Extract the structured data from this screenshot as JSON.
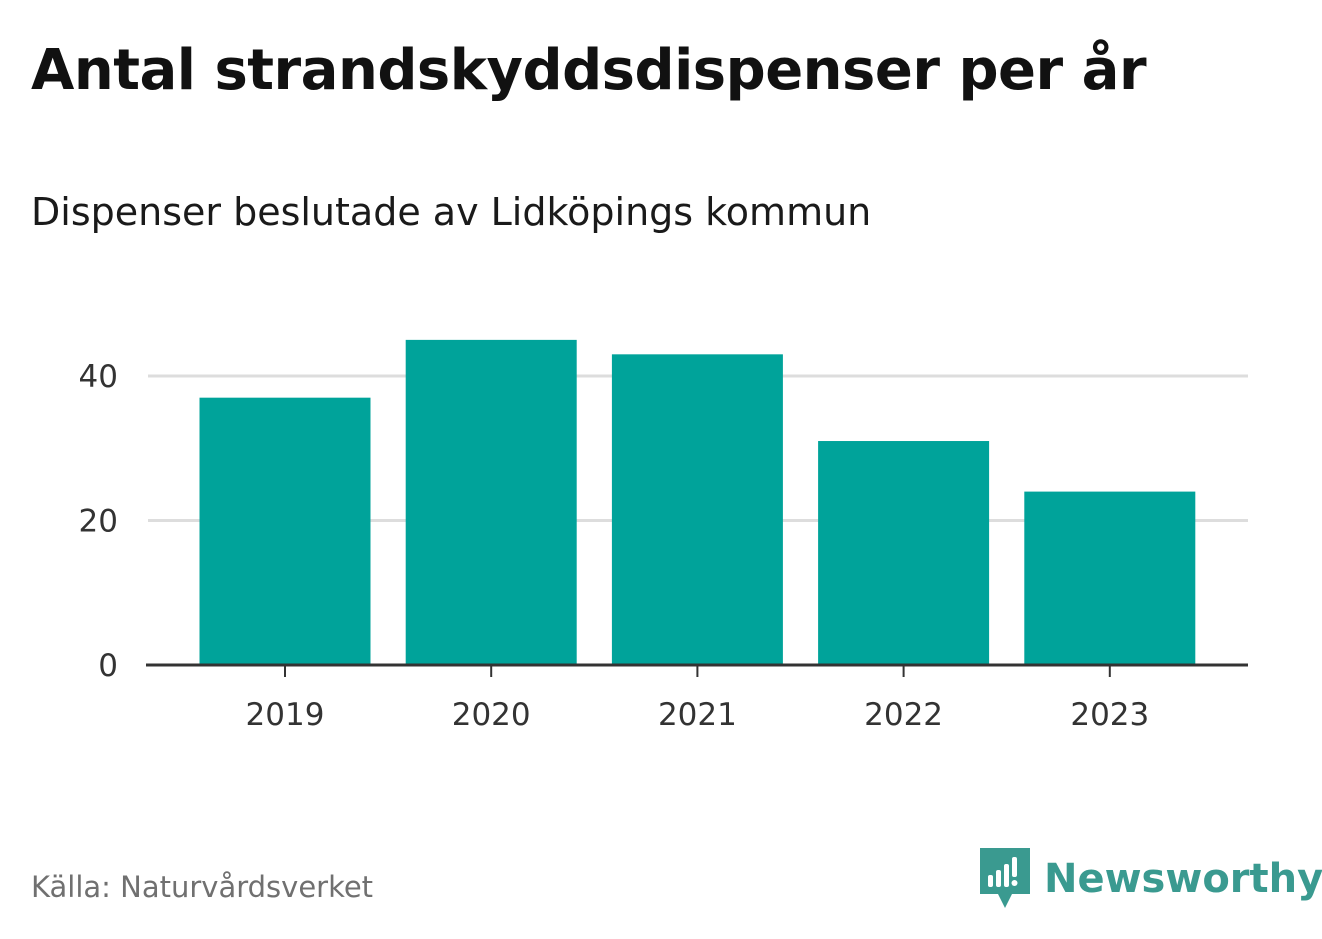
{
  "title": "Antal strandskyddsdispenser per år",
  "subtitle": "Dispenser beslutade av Lidköpings kommun",
  "source": "Källa: Naturvårdsverket",
  "brand": {
    "name": "Newsworthy",
    "icon": "newsworthy-logo-icon"
  },
  "colors": {
    "bar": "#00a39a",
    "grid": "#dddddd",
    "axis": "#333333",
    "brand": "#3a9a90"
  },
  "chart_data": {
    "type": "bar",
    "title": "Antal strandskyddsdispenser per år",
    "subtitle": "Dispenser beslutade av Lidköpings kommun",
    "categories": [
      "2019",
      "2020",
      "2021",
      "2022",
      "2023"
    ],
    "values": [
      37,
      45,
      43,
      31,
      24
    ],
    "xlabel": "",
    "ylabel": "",
    "ylim": [
      0,
      48
    ],
    "yticks": [
      0,
      20,
      40
    ],
    "grid": true,
    "legend": "none"
  }
}
